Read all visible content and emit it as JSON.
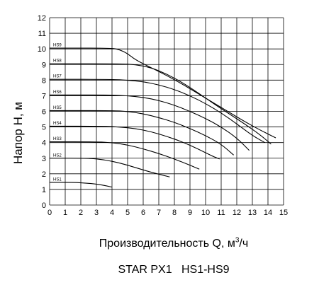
{
  "chart_data": {
    "type": "line",
    "title": "",
    "xlabel": "Производительность Q, м³/ч",
    "ylabel": "Напор H, м",
    "xlim": [
      0,
      15
    ],
    "ylim": [
      0,
      12
    ],
    "xticks": [
      "0",
      "1",
      "2",
      "3",
      "4",
      "5",
      "6",
      "7",
      "8",
      "9",
      "10",
      "11",
      "12",
      "13",
      "14",
      "15"
    ],
    "yticks": [
      "0",
      "1",
      "2",
      "3",
      "4",
      "5",
      "6",
      "7",
      "8",
      "9",
      "10",
      "11",
      "12"
    ],
    "grid": true,
    "legend": "none",
    "line_color": "#000000",
    "series": [
      {
        "name": "HS1",
        "points": [
          [
            0,
            1.45
          ],
          [
            1.5,
            1.45
          ],
          [
            2.5,
            1.4
          ],
          [
            3.3,
            1.3
          ],
          [
            4.0,
            1.15
          ]
        ]
      },
      {
        "name": "HS2",
        "points": [
          [
            0,
            3.0
          ],
          [
            2.5,
            3.0
          ],
          [
            3.5,
            2.9
          ],
          [
            4.5,
            2.7
          ],
          [
            5.5,
            2.4
          ],
          [
            6.5,
            2.1
          ],
          [
            7.7,
            1.8
          ]
        ]
      },
      {
        "name": "HS3",
        "points": [
          [
            0,
            4.05
          ],
          [
            3.0,
            4.05
          ],
          [
            4.0,
            4.0
          ],
          [
            5.0,
            3.85
          ],
          [
            6.0,
            3.6
          ],
          [
            7.0,
            3.3
          ],
          [
            8.0,
            2.95
          ],
          [
            9.0,
            2.55
          ],
          [
            9.6,
            2.3
          ]
        ]
      },
      {
        "name": "HS4",
        "points": [
          [
            0,
            5.05
          ],
          [
            3.5,
            5.05
          ],
          [
            4.5,
            5.0
          ],
          [
            5.5,
            4.9
          ],
          [
            6.5,
            4.7
          ],
          [
            7.5,
            4.4
          ],
          [
            8.5,
            4.05
          ],
          [
            9.5,
            3.6
          ],
          [
            10.5,
            3.1
          ],
          [
            10.9,
            2.95
          ]
        ]
      },
      {
        "name": "HS5",
        "points": [
          [
            0,
            6.05
          ],
          [
            4.0,
            6.05
          ],
          [
            5.0,
            6.0
          ],
          [
            6.0,
            5.85
          ],
          [
            7.0,
            5.6
          ],
          [
            8.0,
            5.3
          ],
          [
            9.0,
            4.9
          ],
          [
            10.0,
            4.45
          ],
          [
            11.0,
            3.9
          ],
          [
            11.8,
            3.2
          ]
        ]
      },
      {
        "name": "HS6",
        "points": [
          [
            0,
            7.05
          ],
          [
            4.0,
            7.05
          ],
          [
            5.0,
            7.0
          ],
          [
            6.0,
            6.9
          ],
          [
            7.0,
            6.7
          ],
          [
            8.0,
            6.4
          ],
          [
            9.0,
            6.0
          ],
          [
            10.0,
            5.55
          ],
          [
            11.0,
            5.0
          ],
          [
            12.0,
            4.3
          ],
          [
            12.8,
            3.5
          ]
        ]
      },
      {
        "name": "HS7",
        "points": [
          [
            0,
            8.05
          ],
          [
            4.0,
            8.05
          ],
          [
            5.0,
            8.0
          ],
          [
            6.0,
            7.9
          ],
          [
            7.0,
            7.7
          ],
          [
            8.0,
            7.4
          ],
          [
            9.0,
            7.0
          ],
          [
            10.0,
            6.5
          ],
          [
            11.0,
            5.9
          ],
          [
            12.0,
            5.2
          ],
          [
            13.0,
            4.45
          ],
          [
            13.8,
            4.0
          ]
        ]
      },
      {
        "name": "HS8",
        "points": [
          [
            0,
            9.05
          ],
          [
            4.5,
            9.05
          ],
          [
            5.5,
            9.0
          ],
          [
            6.5,
            8.8
          ],
          [
            7.5,
            8.4
          ],
          [
            8.5,
            7.85
          ],
          [
            9.5,
            7.2
          ],
          [
            10.5,
            6.5
          ],
          [
            11.5,
            5.85
          ],
          [
            12.5,
            5.2
          ],
          [
            13.5,
            4.5
          ],
          [
            14.2,
            3.9
          ]
        ]
      },
      {
        "name": "HS9",
        "points": [
          [
            0,
            10.05
          ],
          [
            4.0,
            10.05
          ],
          [
            4.5,
            9.95
          ],
          [
            5.0,
            9.7
          ],
          [
            5.5,
            9.3
          ],
          [
            6.5,
            8.8
          ],
          [
            7.5,
            8.3
          ],
          [
            8.5,
            7.75
          ],
          [
            9.5,
            7.15
          ],
          [
            10.5,
            6.55
          ],
          [
            11.5,
            5.95
          ],
          [
            12.5,
            5.35
          ],
          [
            13.5,
            4.8
          ],
          [
            14.5,
            4.3
          ]
        ]
      }
    ]
  },
  "caption": "STAR PX1   HS1-HS9"
}
